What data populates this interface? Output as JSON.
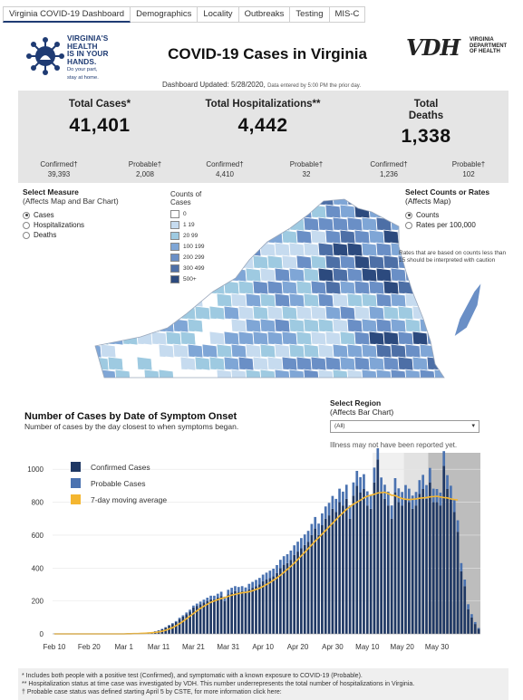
{
  "tabs": [
    "Virginia COVID-19 Dashboard",
    "Demographics",
    "Locality",
    "Outbreaks",
    "Testing",
    "MIS-C"
  ],
  "logo": {
    "lines": [
      "VIRGINIA'S",
      "HEALTH",
      "IS IN YOUR",
      "HANDS."
    ],
    "tagline": [
      "Do your part,",
      "stay at home."
    ]
  },
  "title": "COVID-19 Cases in Virginia",
  "vdh": {
    "mark": "VDH",
    "lines": [
      "VIRGINIA",
      "DEPARTMENT",
      "OF HEALTH"
    ]
  },
  "updated": {
    "main": "Dashboard Updated: 5/28/2020,",
    "note": "Data entered by 5:00 PM the prior day."
  },
  "summary": {
    "cases": {
      "label": "Total Cases*",
      "value": "41,401",
      "confirmed_label": "Confirmed†",
      "confirmed": "39,393",
      "probable_label": "Probable†",
      "probable": "2,008"
    },
    "hosp": {
      "label": "Total Hospitalizations**",
      "value": "4,442",
      "confirmed_label": "Confirmed†",
      "confirmed": "4,410",
      "probable_label": "Probable†",
      "probable": "32"
    },
    "deaths": {
      "label": "Total Deaths",
      "value": "1,338",
      "confirmed_label": "Confirmed†",
      "confirmed": "1,236",
      "probable_label": "Probable†",
      "probable": "102"
    }
  },
  "measure": {
    "title": "Select Measure",
    "subtitle": "(Affects Map and Bar Chart)",
    "options": [
      "Cases",
      "Hospitalizations",
      "Deaths"
    ],
    "selected": "Cases"
  },
  "map_legend": {
    "title": "Counts of Cases",
    "bins": [
      {
        "label": "0",
        "color": "#ffffff"
      },
      {
        "label": "1 19",
        "color": "#c6dbef"
      },
      {
        "label": "20 99",
        "color": "#9ecae1"
      },
      {
        "label": "100 199",
        "color": "#7fa6d6"
      },
      {
        "label": "200 299",
        "color": "#6a8fc6"
      },
      {
        "label": "300 499",
        "color": "#4d6fa6"
      },
      {
        "label": "500+",
        "color": "#2c4a7e"
      }
    ]
  },
  "counts": {
    "title": "Select Counts or Rates",
    "subtitle": "(Affects Map)",
    "options": [
      "Counts",
      "Rates per 100,000"
    ],
    "selected": "Counts",
    "note": "Rates that are based on counts less than 15 should be interpreted with caution"
  },
  "chart_section": {
    "title": "Number of Cases by Date of Symptom Onset",
    "subtitle": "Number of cases by the day closest to when symptoms began.",
    "region_title": "Select Region",
    "region_subtitle": "(Affects Bar Chart)",
    "region_value": "(All)",
    "illness_note": "Illness may not have been reported yet."
  },
  "chart_data": {
    "type": "bar",
    "x_labels": [
      "Feb 10",
      "Feb 20",
      "Mar 1",
      "Mar 11",
      "Mar 21",
      "Mar 31",
      "Apr 10",
      "Apr 20",
      "Apr 30",
      "May 10",
      "May 20",
      "May 30"
    ],
    "x_start": "2020-02-10",
    "ylim": [
      0,
      1100
    ],
    "yticks": [
      0,
      200,
      400,
      600,
      800,
      1000
    ],
    "legend": [
      "Confirmed Cases",
      "Probable Cases",
      "7-day moving average"
    ],
    "colors": {
      "confirmed": "#1f3864",
      "probable": "#4a72b0",
      "avg": "#f4b630"
    },
    "confirmed": [
      1,
      0,
      0,
      0,
      0,
      0,
      0,
      0,
      0,
      0,
      0,
      0,
      0,
      0,
      0,
      0,
      0,
      0,
      0,
      1,
      0,
      1,
      2,
      2,
      3,
      4,
      6,
      8,
      10,
      14,
      20,
      28,
      38,
      50,
      60,
      72,
      90,
      105,
      120,
      135,
      160,
      170,
      180,
      190,
      200,
      210,
      210,
      220,
      230,
      200,
      240,
      250,
      260,
      255,
      260,
      250,
      270,
      280,
      290,
      300,
      320,
      330,
      340,
      350,
      370,
      400,
      420,
      430,
      450,
      480,
      500,
      520,
      540,
      560,
      600,
      640,
      600,
      660,
      700,
      720,
      760,
      740,
      800,
      780,
      820,
      700,
      840,
      900,
      860,
      880,
      780,
      760,
      920,
      1060,
      860,
      820,
      780,
      700,
      860,
      800,
      780,
      820,
      800,
      760,
      780,
      850,
      880,
      820,
      920,
      800,
      800,
      780,
      1020,
      880,
      820,
      740,
      620,
      380,
      290,
      150,
      100,
      60,
      30
    ],
    "probable": [
      0,
      0,
      0,
      0,
      0,
      0,
      0,
      0,
      0,
      0,
      0,
      0,
      0,
      0,
      0,
      0,
      0,
      0,
      0,
      0,
      0,
      0,
      0,
      0,
      0,
      0,
      1,
      1,
      1,
      2,
      2,
      3,
      3,
      4,
      5,
      6,
      8,
      8,
      10,
      12,
      12,
      14,
      16,
      18,
      20,
      22,
      22,
      24,
      26,
      26,
      28,
      30,
      30,
      30,
      30,
      32,
      34,
      36,
      38,
      40,
      40,
      42,
      44,
      46,
      48,
      50,
      52,
      54,
      56,
      58,
      60,
      62,
      64,
      66,
      68,
      70,
      70,
      72,
      74,
      76,
      78,
      80,
      82,
      84,
      86,
      80,
      80,
      90,
      92,
      90,
      86,
      84,
      90,
      100,
      90,
      86,
      84,
      80,
      86,
      84,
      82,
      84,
      82,
      80,
      82,
      84,
      86,
      84,
      88,
      82,
      80,
      78,
      90,
      84,
      80,
      76,
      70,
      50,
      40,
      30,
      20,
      12,
      6
    ],
    "avg": [
      0,
      0,
      0,
      0,
      0,
      0,
      0,
      0,
      0,
      0,
      0,
      0,
      0,
      0,
      0,
      0,
      0,
      0,
      0,
      0,
      0,
      1,
      1,
      2,
      2,
      3,
      4,
      5,
      7,
      9,
      12,
      16,
      22,
      30,
      38,
      50,
      62,
      76,
      92,
      108,
      124,
      140,
      155,
      168,
      180,
      192,
      200,
      208,
      215,
      220,
      228,
      235,
      240,
      245,
      250,
      252,
      256,
      262,
      270,
      278,
      288,
      300,
      312,
      326,
      340,
      356,
      374,
      392,
      410,
      430,
      452,
      474,
      496,
      518,
      540,
      564,
      584,
      606,
      628,
      650,
      672,
      694,
      716,
      736,
      756,
      772,
      788,
      800,
      812,
      826,
      836,
      842,
      848,
      856,
      858,
      860,
      852,
      842,
      840,
      830,
      822,
      818,
      816,
      818,
      820,
      824,
      826,
      828,
      832,
      834,
      836,
      832,
      828,
      826,
      820,
      816,
      814
    ]
  },
  "footnotes": [
    "* Includes both people with a positive test (Confirmed), and symptomatic with a known exposure to COVID-19 (Probable).",
    "** Hospitalization status at time case was investigated by VDH. This number underrepresents the total number of hospitalizations in Virginia.",
    "† Probable case status was defined starting April 5 by CSTE, for more information click here:"
  ]
}
